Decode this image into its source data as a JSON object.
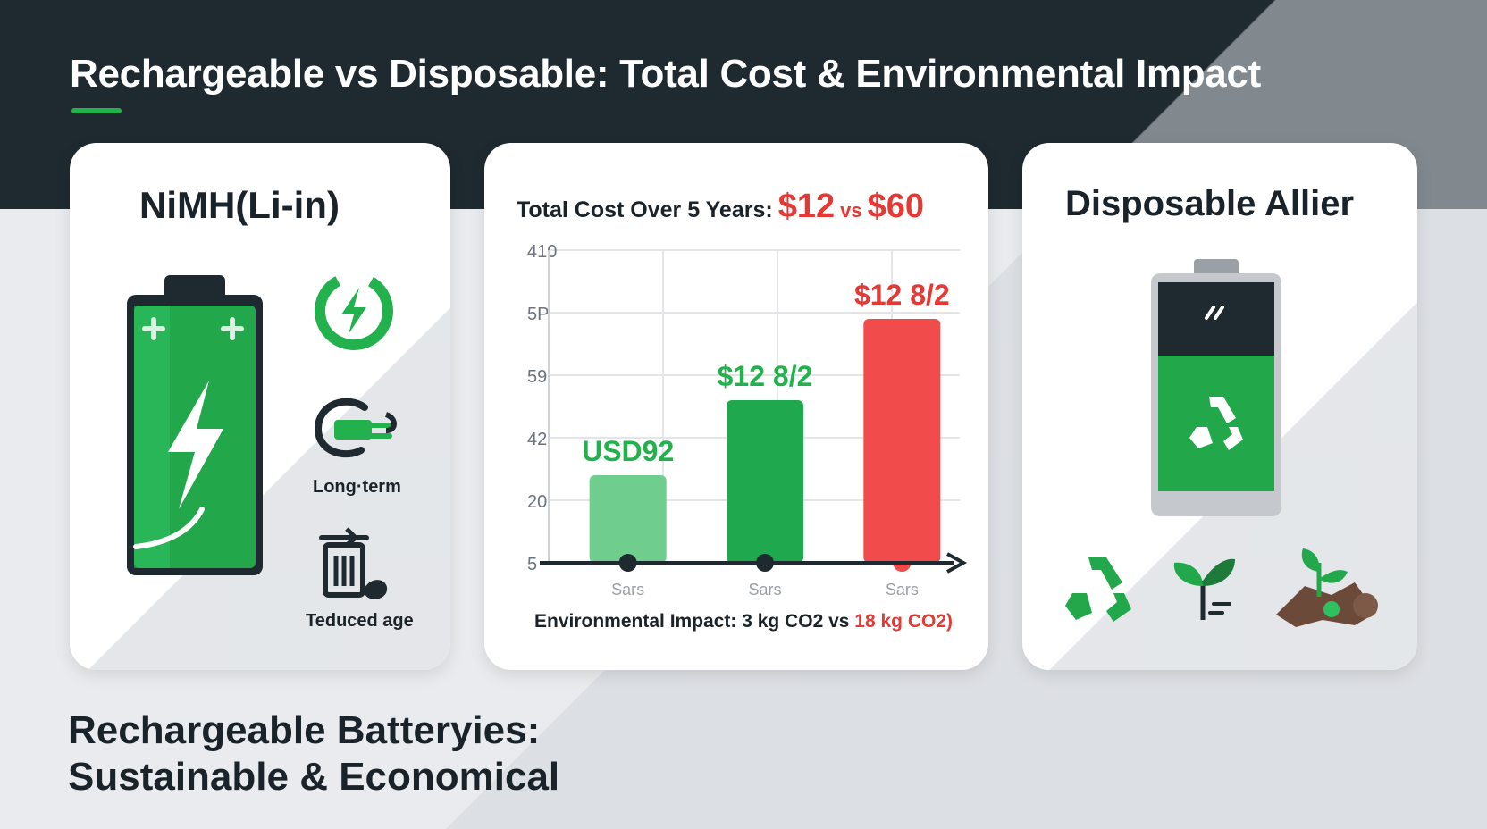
{
  "header": {
    "title": "Rechargeable vs Disposable: Total Cost & Environmental Impact"
  },
  "left_card": {
    "title": "NiMH(Li-in)",
    "labels": {
      "long_term": "Long·term",
      "reduced": "Teduced age"
    }
  },
  "middle_card": {
    "title_prefix": "Total Cost Over 5 Years:",
    "title_value_a": "$12",
    "title_vs": "vs",
    "title_value_b": "$60",
    "impact_prefix": "Environmental Impact: 3 kg CO2 vs",
    "impact_highlight": "18 kg CO2)"
  },
  "right_card": {
    "title": "Disposable Allier"
  },
  "footer": {
    "line1": "Rechargeable Batteryies:",
    "line2": "Sustainable & Economical"
  },
  "colors": {
    "dark_header": "#1e2a30",
    "green": "#22b14c",
    "light_green": "#6fce8e",
    "red": "#f24b4b",
    "text": "#1b232a"
  },
  "chart_data": {
    "type": "bar",
    "y_tick_labels": [
      "410",
      "5P",
      "59",
      "42",
      "20",
      "5"
    ],
    "categories": [
      "Sars",
      "Sars",
      "Sars"
    ],
    "values": [
      28,
      52,
      78
    ],
    "data_labels": [
      "USD92",
      "$12 8/2",
      "$12 8/2"
    ],
    "bar_colors": [
      "#6fce8e",
      "#1fa84d",
      "#f24b4b"
    ],
    "label_colors": [
      "#22b14c",
      "#22b14c",
      "#e53935"
    ],
    "ylim": [
      0,
      100
    ],
    "grid": true
  }
}
